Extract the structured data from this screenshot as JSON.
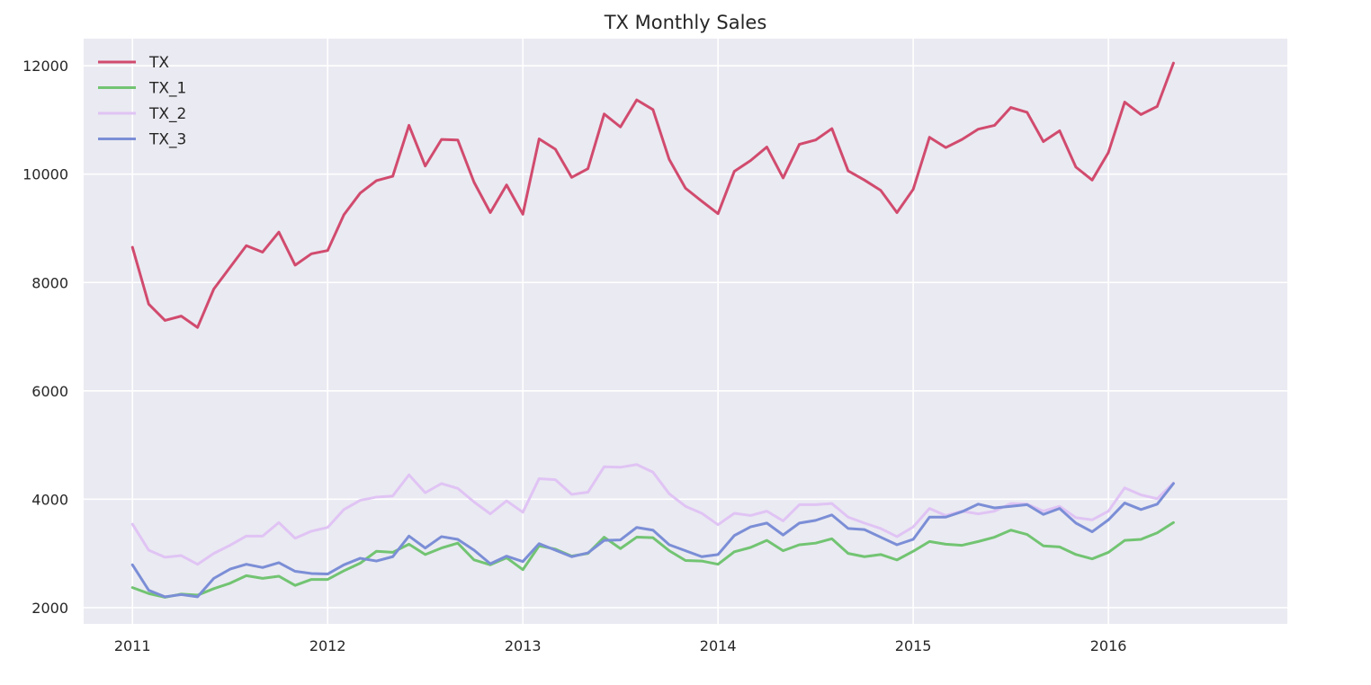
{
  "chart_data": {
    "type": "line",
    "title": "TX Monthly Sales",
    "xlabel": "",
    "ylabel": "",
    "x_start": "2011-01",
    "x_end": "2016-05",
    "x_ticks": [
      "2011",
      "2012",
      "2013",
      "2014",
      "2015",
      "2016"
    ],
    "xlim": [
      "2010-10",
      "2016-12"
    ],
    "y_ticks": [
      2000,
      4000,
      6000,
      8000,
      10000,
      12000
    ],
    "ylim": [
      1700,
      12500
    ],
    "grid": true,
    "legend": "upper-left",
    "series": [
      {
        "name": "TX",
        "color": "#d14b6e",
        "values": [
          8650,
          7600,
          7300,
          7380,
          7170,
          7880,
          8280,
          8680,
          8560,
          8930,
          8320,
          8530,
          8590,
          9250,
          9650,
          9880,
          9960,
          10900,
          10150,
          10640,
          10630,
          9850,
          9290,
          9800,
          9260,
          10650,
          10460,
          9940,
          10100,
          11110,
          10870,
          11370,
          11190,
          10270,
          9740,
          9500,
          9270,
          10050,
          10250,
          10500,
          9930,
          10550,
          10630,
          10840,
          10060,
          9890,
          9700,
          9290,
          9720,
          10680,
          10490,
          10640,
          10830,
          10900,
          11230,
          11140,
          10600,
          10800,
          10130,
          9890,
          10400,
          11330,
          11100,
          11250,
          12050
        ]
      },
      {
        "name": "TX_1",
        "color": "#72c472",
        "values": [
          2370,
          2260,
          2190,
          2250,
          2230,
          2350,
          2450,
          2590,
          2540,
          2580,
          2410,
          2520,
          2520,
          2680,
          2820,
          3040,
          3020,
          3170,
          2980,
          3100,
          3190,
          2880,
          2790,
          2920,
          2700,
          3140,
          3080,
          2950,
          3000,
          3300,
          3090,
          3300,
          3290,
          3050,
          2870,
          2860,
          2800,
          3030,
          3110,
          3240,
          3050,
          3160,
          3190,
          3270,
          3000,
          2940,
          2980,
          2880,
          3040,
          3220,
          3170,
          3150,
          3220,
          3300,
          3430,
          3350,
          3140,
          3120,
          2980,
          2900,
          3020,
          3240,
          3260,
          3380,
          3570
        ]
      },
      {
        "name": "TX_2",
        "color": "#e0c4f4",
        "values": [
          3540,
          3060,
          2930,
          2960,
          2800,
          3000,
          3150,
          3320,
          3320,
          3570,
          3280,
          3410,
          3480,
          3810,
          3980,
          4040,
          4060,
          4450,
          4120,
          4290,
          4200,
          3950,
          3730,
          3970,
          3760,
          4380,
          4360,
          4090,
          4130,
          4600,
          4590,
          4640,
          4500,
          4100,
          3870,
          3740,
          3530,
          3740,
          3700,
          3780,
          3600,
          3900,
          3900,
          3920,
          3670,
          3560,
          3460,
          3310,
          3490,
          3830,
          3700,
          3780,
          3730,
          3780,
          3920,
          3910,
          3780,
          3870,
          3660,
          3620,
          3780,
          4210,
          4080,
          4010,
          4300
        ]
      },
      {
        "name": "TX_3",
        "color": "#7b8ed6",
        "values": [
          2790,
          2320,
          2200,
          2240,
          2200,
          2540,
          2710,
          2800,
          2740,
          2830,
          2670,
          2630,
          2620,
          2790,
          2910,
          2860,
          2940,
          3320,
          3100,
          3310,
          3260,
          3060,
          2810,
          2950,
          2850,
          3180,
          3060,
          2940,
          3010,
          3240,
          3250,
          3480,
          3430,
          3160,
          3050,
          2940,
          2980,
          3330,
          3490,
          3560,
          3340,
          3560,
          3610,
          3710,
          3460,
          3440,
          3300,
          3160,
          3260,
          3670,
          3670,
          3770,
          3910,
          3840,
          3870,
          3900,
          3720,
          3830,
          3560,
          3400,
          3620,
          3930,
          3810,
          3910,
          4290
        ]
      }
    ]
  }
}
